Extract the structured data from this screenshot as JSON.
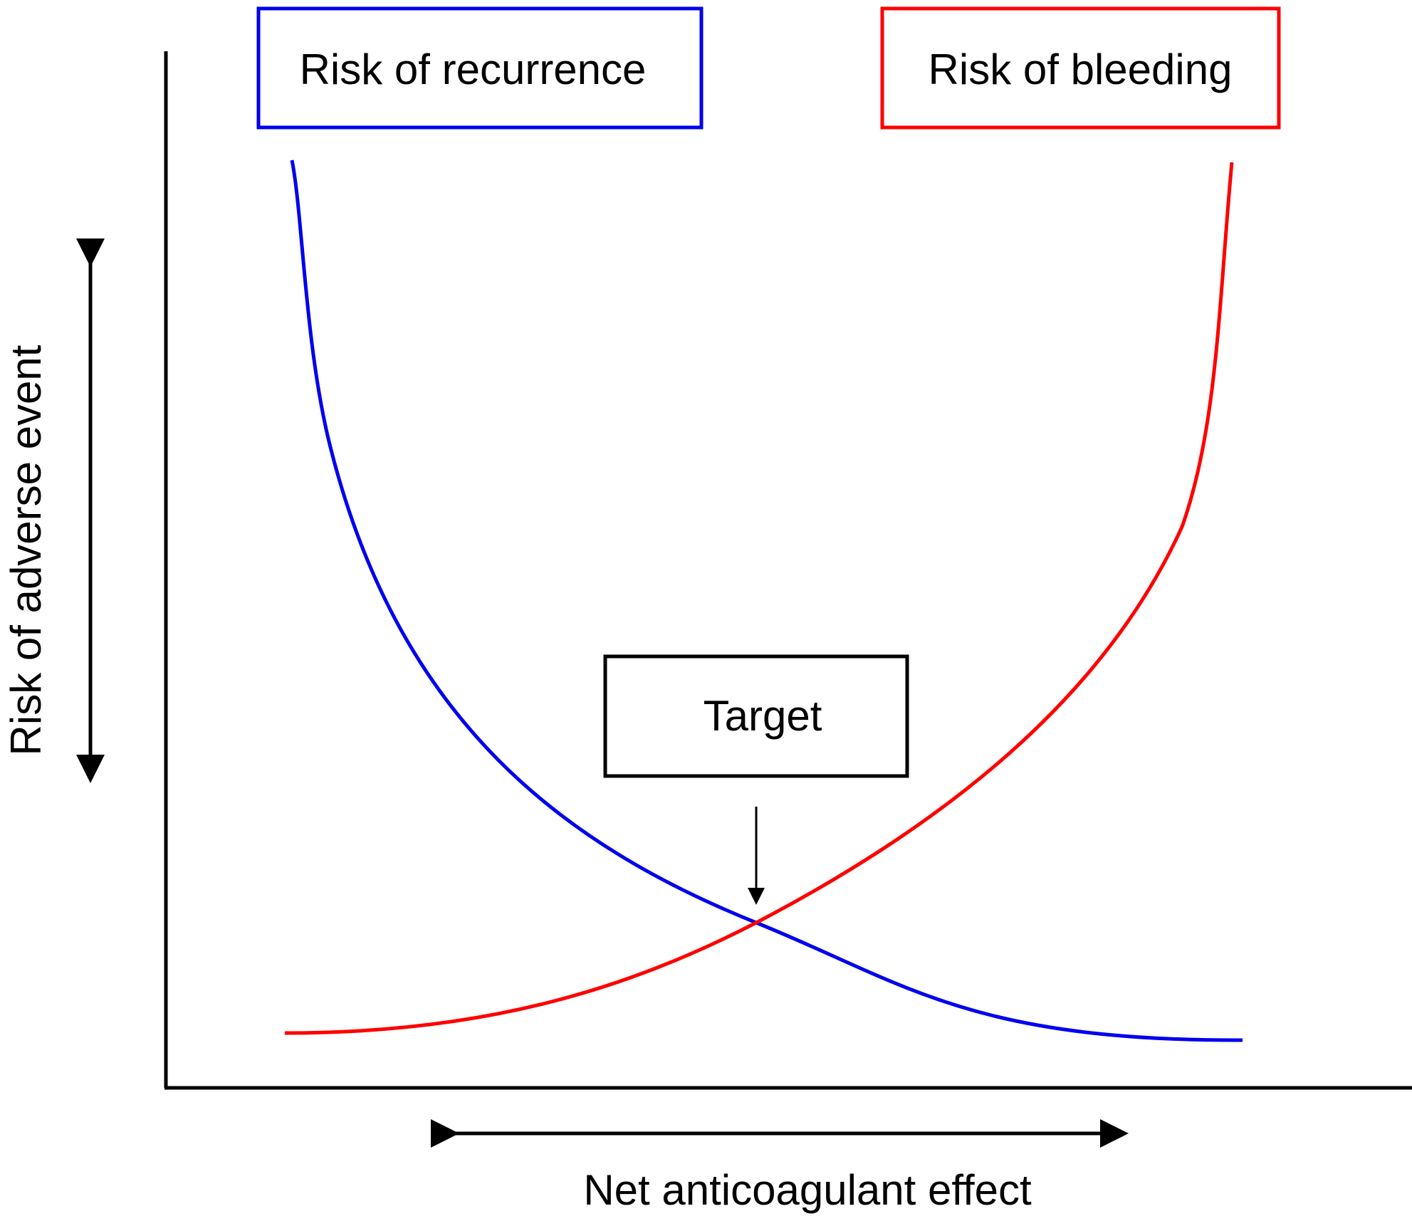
{
  "diagram": {
    "legend": {
      "recurrence": {
        "label": "Risk of recurrence",
        "color": "#0000ee"
      },
      "bleeding": {
        "label": "Risk of bleeding",
        "color": "#ff0000"
      }
    },
    "target_label": "Target",
    "y_axis_label": "Risk of adverse event",
    "x_axis_label": "Net anticoagulant effect",
    "curves": [
      {
        "name": "recurrence",
        "trend": "decreasing",
        "color": "#0000ee"
      },
      {
        "name": "bleeding",
        "trend": "increasing",
        "color": "#ff0000"
      }
    ]
  }
}
